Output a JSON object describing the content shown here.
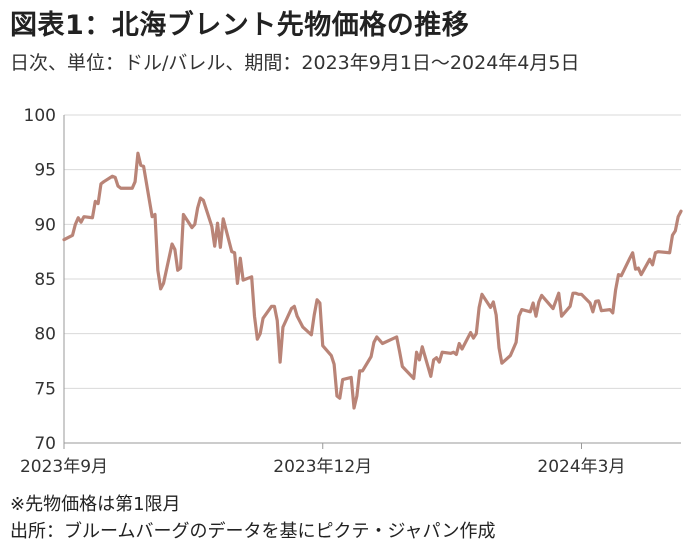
{
  "header": {
    "title": "図表1：北海ブレント先物価格の推移",
    "subtitle": "日次、単位：ドル/バレル、期間：2023年9月1日～2024年4月5日"
  },
  "notes": {
    "futures_note": "※先物価格は第1限月",
    "source": "出所：ブルームバーグのデータを基にピクテ・ジャパン作成"
  },
  "chart_data": {
    "type": "line",
    "title": "図表1：北海ブレント先物価格の推移",
    "subtitle": "日次、単位：ドル/バレル、期間：2023年9月1日～2024年4月5日",
    "xlabel": "",
    "ylabel": "",
    "ylim": [
      70,
      100
    ],
    "yticks": [
      "70",
      "75",
      "80",
      "85",
      "90",
      "95",
      "100"
    ],
    "xticks": [
      {
        "date": "2023-09-01",
        "label": "2023年9月"
      },
      {
        "date": "2023-12-01",
        "label": "2023年12月"
      },
      {
        "date": "2024-03-01",
        "label": "2024年3月"
      }
    ],
    "xlim": [
      "2023-09-01",
      "2024-04-05"
    ],
    "grid": {
      "horizontal": true,
      "vertical": false
    },
    "line_color": "#b98477",
    "series": [
      {
        "points": [
          [
            "2023-09-01",
            88.6
          ],
          [
            "2023-09-04",
            89.0
          ],
          [
            "2023-09-05",
            90.0
          ],
          [
            "2023-09-06",
            90.6
          ],
          [
            "2023-09-07",
            90.2
          ],
          [
            "2023-09-08",
            90.7
          ],
          [
            "2023-09-11",
            90.6
          ],
          [
            "2023-09-12",
            92.1
          ],
          [
            "2023-09-13",
            91.9
          ],
          [
            "2023-09-14",
            93.7
          ],
          [
            "2023-09-15",
            93.9
          ],
          [
            "2023-09-18",
            94.4
          ],
          [
            "2023-09-19",
            94.3
          ],
          [
            "2023-09-20",
            93.5
          ],
          [
            "2023-09-21",
            93.3
          ],
          [
            "2023-09-22",
            93.3
          ],
          [
            "2023-09-25",
            93.3
          ],
          [
            "2023-09-26",
            93.9
          ],
          [
            "2023-09-27",
            96.5
          ],
          [
            "2023-09-28",
            95.4
          ],
          [
            "2023-09-29",
            95.3
          ],
          [
            "2023-10-02",
            90.7
          ],
          [
            "2023-10-03",
            90.9
          ],
          [
            "2023-10-04",
            85.8
          ],
          [
            "2023-10-05",
            84.1
          ],
          [
            "2023-10-06",
            84.6
          ],
          [
            "2023-10-09",
            88.2
          ],
          [
            "2023-10-10",
            87.7
          ],
          [
            "2023-10-11",
            85.8
          ],
          [
            "2023-10-12",
            86.0
          ],
          [
            "2023-10-13",
            90.9
          ],
          [
            "2023-10-16",
            89.7
          ],
          [
            "2023-10-17",
            90.0
          ],
          [
            "2023-10-18",
            91.5
          ],
          [
            "2023-10-19",
            92.4
          ],
          [
            "2023-10-20",
            92.2
          ],
          [
            "2023-10-23",
            89.8
          ],
          [
            "2023-10-24",
            88.0
          ],
          [
            "2023-10-25",
            90.1
          ],
          [
            "2023-10-26",
            87.9
          ],
          [
            "2023-10-27",
            90.5
          ],
          [
            "2023-10-30",
            87.5
          ],
          [
            "2023-10-31",
            87.4
          ],
          [
            "2023-11-01",
            84.6
          ],
          [
            "2023-11-02",
            86.9
          ],
          [
            "2023-11-03",
            84.9
          ],
          [
            "2023-11-06",
            85.2
          ],
          [
            "2023-11-07",
            81.6
          ],
          [
            "2023-11-08",
            79.5
          ],
          [
            "2023-11-09",
            80.0
          ],
          [
            "2023-11-10",
            81.4
          ],
          [
            "2023-11-13",
            82.5
          ],
          [
            "2023-11-14",
            82.5
          ],
          [
            "2023-11-15",
            81.2
          ],
          [
            "2023-11-16",
            77.4
          ],
          [
            "2023-11-17",
            80.6
          ],
          [
            "2023-11-20",
            82.3
          ],
          [
            "2023-11-21",
            82.5
          ],
          [
            "2023-11-22",
            81.6
          ],
          [
            "2023-11-24",
            80.6
          ],
          [
            "2023-11-27",
            79.9
          ],
          [
            "2023-11-28",
            81.7
          ],
          [
            "2023-11-29",
            83.1
          ],
          [
            "2023-11-30",
            82.8
          ],
          [
            "2023-12-01",
            78.9
          ],
          [
            "2023-12-04",
            78.0
          ],
          [
            "2023-12-05",
            77.2
          ],
          [
            "2023-12-06",
            74.3
          ],
          [
            "2023-12-07",
            74.1
          ],
          [
            "2023-12-08",
            75.8
          ],
          [
            "2023-12-11",
            76.0
          ],
          [
            "2023-12-12",
            73.2
          ],
          [
            "2023-12-13",
            74.3
          ],
          [
            "2023-12-14",
            76.6
          ],
          [
            "2023-12-15",
            76.6
          ],
          [
            "2023-12-18",
            77.9
          ],
          [
            "2023-12-19",
            79.2
          ],
          [
            "2023-12-20",
            79.7
          ],
          [
            "2023-12-21",
            79.4
          ],
          [
            "2023-12-22",
            79.1
          ],
          [
            "2023-12-27",
            79.7
          ],
          [
            "2023-12-28",
            78.4
          ],
          [
            "2023-12-29",
            77.0
          ],
          [
            "2024-01-02",
            75.9
          ],
          [
            "2024-01-03",
            78.3
          ],
          [
            "2024-01-04",
            77.6
          ],
          [
            "2024-01-05",
            78.8
          ],
          [
            "2024-01-08",
            76.1
          ],
          [
            "2024-01-09",
            77.6
          ],
          [
            "2024-01-10",
            77.8
          ],
          [
            "2024-01-11",
            77.4
          ],
          [
            "2024-01-12",
            78.3
          ],
          [
            "2024-01-15",
            78.2
          ],
          [
            "2024-01-16",
            78.3
          ],
          [
            "2024-01-17",
            78.1
          ],
          [
            "2024-01-18",
            79.1
          ],
          [
            "2024-01-19",
            78.6
          ],
          [
            "2024-01-22",
            80.1
          ],
          [
            "2024-01-23",
            79.6
          ],
          [
            "2024-01-24",
            80.0
          ],
          [
            "2024-01-25",
            82.4
          ],
          [
            "2024-01-26",
            83.6
          ],
          [
            "2024-01-29",
            82.4
          ],
          [
            "2024-01-30",
            82.9
          ],
          [
            "2024-01-31",
            81.7
          ],
          [
            "2024-02-01",
            78.7
          ],
          [
            "2024-02-02",
            77.3
          ],
          [
            "2024-02-05",
            78.0
          ],
          [
            "2024-02-06",
            78.6
          ],
          [
            "2024-02-07",
            79.2
          ],
          [
            "2024-02-08",
            81.6
          ],
          [
            "2024-02-09",
            82.2
          ],
          [
            "2024-02-12",
            82.0
          ],
          [
            "2024-02-13",
            82.8
          ],
          [
            "2024-02-14",
            81.6
          ],
          [
            "2024-02-15",
            82.9
          ],
          [
            "2024-02-16",
            83.5
          ],
          [
            "2024-02-20",
            82.3
          ],
          [
            "2024-02-21",
            83.0
          ],
          [
            "2024-02-22",
            83.7
          ],
          [
            "2024-02-23",
            81.6
          ],
          [
            "2024-02-26",
            82.5
          ],
          [
            "2024-02-27",
            83.7
          ],
          [
            "2024-02-28",
            83.7
          ],
          [
            "2024-02-29",
            83.6
          ],
          [
            "2024-03-01",
            83.6
          ],
          [
            "2024-03-04",
            82.8
          ],
          [
            "2024-03-05",
            82.0
          ],
          [
            "2024-03-06",
            82.96
          ],
          [
            "2024-03-07",
            83.0
          ],
          [
            "2024-03-08",
            82.1
          ],
          [
            "2024-03-11",
            82.2
          ],
          [
            "2024-03-12",
            81.9
          ],
          [
            "2024-03-13",
            84.0
          ],
          [
            "2024-03-14",
            85.4
          ],
          [
            "2024-03-15",
            85.3
          ],
          [
            "2024-03-18",
            86.9
          ],
          [
            "2024-03-19",
            87.4
          ],
          [
            "2024-03-20",
            85.9
          ],
          [
            "2024-03-21",
            86.0
          ],
          [
            "2024-03-22",
            85.4
          ],
          [
            "2024-03-25",
            86.8
          ],
          [
            "2024-03-26",
            86.3
          ],
          [
            "2024-03-27",
            87.4
          ],
          [
            "2024-03-28",
            87.5
          ],
          [
            "2024-04-01",
            87.4
          ],
          [
            "2024-04-02",
            89.0
          ],
          [
            "2024-04-03",
            89.4
          ],
          [
            "2024-04-04",
            90.7
          ],
          [
            "2024-04-05",
            91.2
          ]
        ]
      }
    ]
  }
}
